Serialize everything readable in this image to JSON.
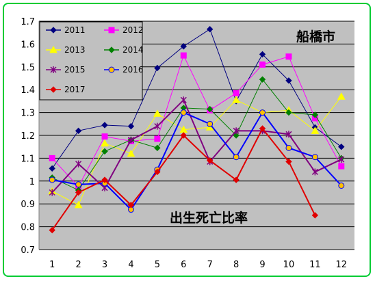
{
  "chart_data": {
    "type": "line",
    "title": "",
    "xlabel": "",
    "ylabel": "",
    "x": [
      "1",
      "2",
      "3",
      "4",
      "5",
      "6",
      "7",
      "8",
      "9",
      "10",
      "11",
      "12"
    ],
    "ylim": [
      0.7,
      1.7
    ],
    "yticks": [
      "0.7",
      "0.8",
      "0.9",
      "1",
      "1.1",
      "1.2",
      "1.3",
      "1.4",
      "1.5",
      "1.6",
      "1.7"
    ],
    "grid": true,
    "legend_position": "top-left",
    "annotations": [
      "船橋市",
      "出生死亡比率"
    ],
    "series": [
      {
        "name": "2011",
        "color": "#000080",
        "marker": "diamond",
        "values": [
          1.055,
          1.22,
          1.245,
          1.24,
          1.495,
          1.59,
          1.665,
          1.35,
          1.555,
          1.44,
          1.235,
          1.15
        ]
      },
      {
        "name": "2012",
        "color": "#ff00ff",
        "marker": "square",
        "values": [
          1.1,
          0.975,
          1.195,
          1.175,
          1.185,
          1.55,
          1.31,
          1.385,
          1.51,
          1.545,
          1.275,
          1.065
        ]
      },
      {
        "name": "2013",
        "color": "#ffff00",
        "marker": "triangle",
        "values": [
          0.955,
          0.895,
          1.165,
          1.12,
          1.295,
          1.225,
          1.235,
          1.355,
          1.3,
          1.31,
          1.22,
          1.37
        ]
      },
      {
        "name": "2014",
        "color": "#008000",
        "marker": "diamond",
        "values": [
          1.015,
          0.96,
          1.13,
          1.18,
          1.145,
          1.32,
          1.315,
          1.2,
          1.445,
          1.3,
          1.29,
          1.1
        ]
      },
      {
        "name": "2015",
        "color": "#800080",
        "marker": "asterisk",
        "values": [
          0.95,
          1.075,
          0.97,
          1.18,
          1.24,
          1.355,
          1.085,
          1.22,
          1.22,
          1.205,
          1.04,
          1.095
        ]
      },
      {
        "name": "2016",
        "color": "#0000ff",
        "marker": "circle",
        "values": [
          1.005,
          0.985,
          0.99,
          0.875,
          1.05,
          1.3,
          1.25,
          1.105,
          1.3,
          1.145,
          1.105,
          0.98
        ]
      },
      {
        "name": "2017",
        "color": "#e00000",
        "marker": "diamond",
        "values": [
          0.785,
          0.95,
          1.005,
          0.895,
          1.04,
          1.2,
          1.09,
          1.005,
          1.23,
          1.085,
          0.85,
          null
        ]
      }
    ]
  }
}
